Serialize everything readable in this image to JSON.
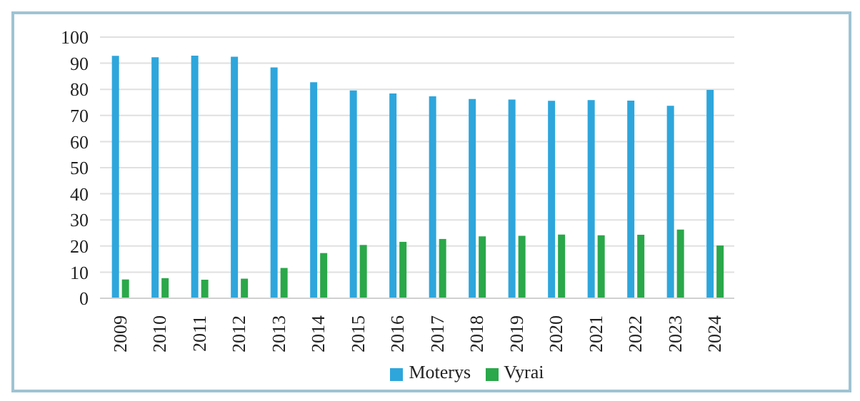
{
  "chart_data": {
    "type": "bar",
    "categories": [
      "2009",
      "2010",
      "2011",
      "2012",
      "2013",
      "2014",
      "2015",
      "2016",
      "2017",
      "2018",
      "2019",
      "2020",
      "2021",
      "2022",
      "2023",
      "2024"
    ],
    "series": [
      {
        "name": "Moterys",
        "color": "#2ea6dc",
        "values": [
          92.8,
          92.3,
          92.9,
          92.5,
          88.4,
          82.7,
          79.6,
          78.4,
          77.3,
          76.3,
          76.1,
          75.6,
          75.9,
          75.7,
          73.7,
          79.8
        ]
      },
      {
        "name": "Vyrai",
        "color": "#2aa84a",
        "values": [
          7.2,
          7.7,
          7.1,
          7.5,
          11.6,
          17.3,
          20.4,
          21.6,
          22.7,
          23.7,
          23.9,
          24.4,
          24.1,
          24.3,
          26.3,
          20.2
        ]
      }
    ],
    "ylim": [
      0,
      100
    ],
    "yticks": [
      0,
      10,
      20,
      30,
      40,
      50,
      60,
      70,
      80,
      90,
      100
    ],
    "grid": "y",
    "legend": "bottom"
  }
}
